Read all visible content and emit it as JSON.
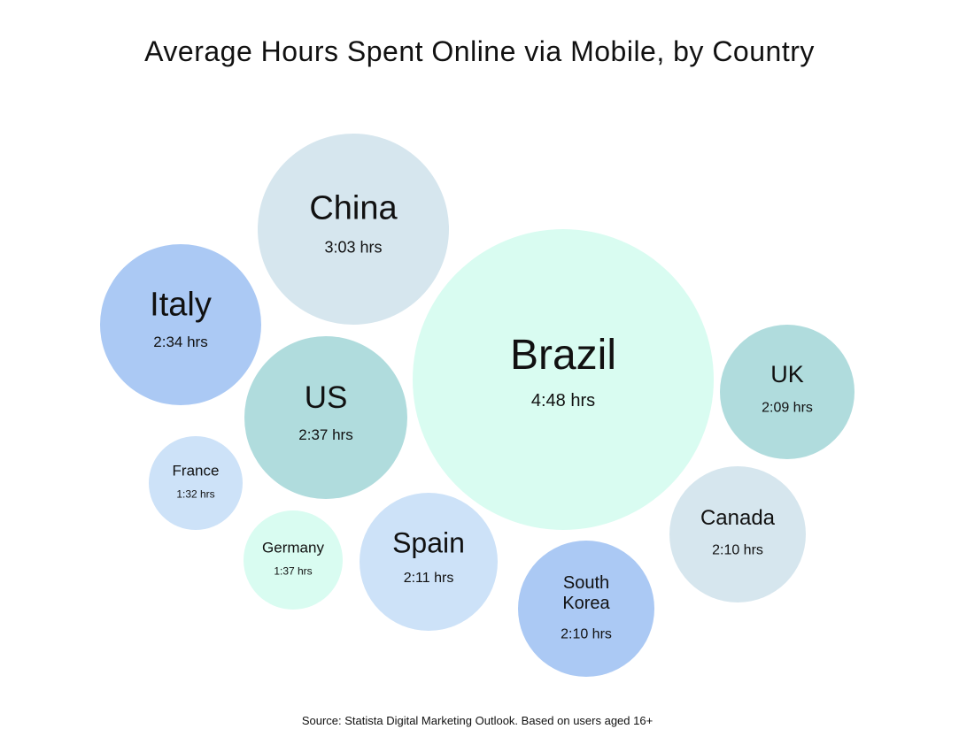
{
  "title": "Average Hours Spent Online via Mobile, by Country",
  "source": "Source: Statista Digital Marketing Outlook. Based on users aged 16+",
  "chart_data": {
    "type": "bubble",
    "title": "Average Hours Spent Online via Mobile, by Country",
    "unit": "hrs",
    "series": [
      {
        "label": [
          "Brazil"
        ],
        "time": "4:48",
        "hours": 4.8,
        "color": "#d9fcf1"
      },
      {
        "label": [
          "China"
        ],
        "time": "3:03",
        "hours": 3.05,
        "color": "#d6e6ee"
      },
      {
        "label": [
          "US"
        ],
        "time": "2:37",
        "hours": 2.62,
        "color": "#b0dcdd"
      },
      {
        "label": [
          "Italy"
        ],
        "time": "2:34",
        "hours": 2.57,
        "color": "#abc9f4"
      },
      {
        "label": [
          "Spain"
        ],
        "time": "2:11",
        "hours": 2.18,
        "color": "#cde2f8"
      },
      {
        "label": [
          "South",
          "Korea"
        ],
        "time": "2:10",
        "hours": 2.17,
        "color": "#abc9f4"
      },
      {
        "label": [
          "Canada"
        ],
        "time": "2:10",
        "hours": 2.17,
        "color": "#d6e6ee"
      },
      {
        "label": [
          "UK"
        ],
        "time": "2:09",
        "hours": 2.15,
        "color": "#b0dcdd"
      },
      {
        "label": [
          "Germany"
        ],
        "time": "1:37",
        "hours": 1.62,
        "color": "#d9fcf1"
      },
      {
        "label": [
          "France"
        ],
        "time": "1:32",
        "hours": 1.53,
        "color": "#cde2f8"
      }
    ]
  }
}
